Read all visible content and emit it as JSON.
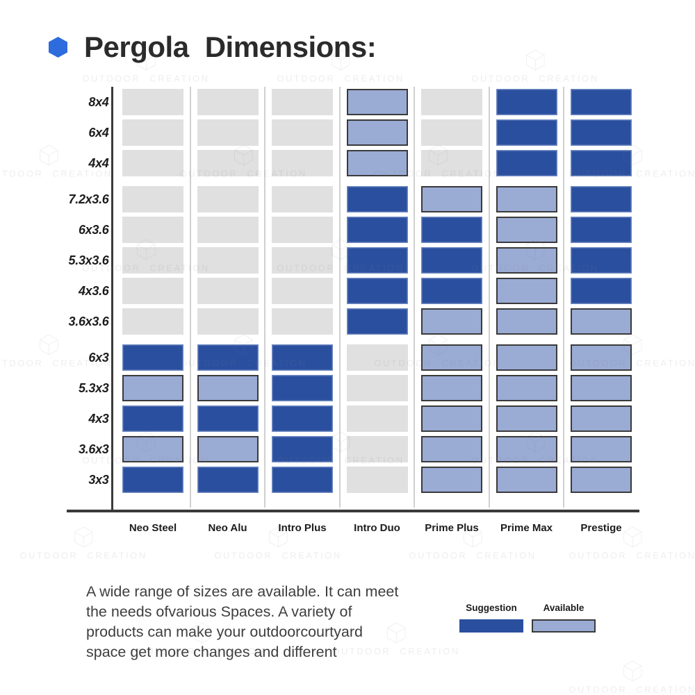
{
  "title": {
    "text": "Pergola Dimensions:",
    "bullet_icon": "blue-hexagon"
  },
  "watermark": {
    "text": "OUTDOOR CREATION"
  },
  "description": {
    "text": "A wide range of sizes are available. It can meet\nthe needs ofvarious Spaces. A variety of\nproducts can make your outdoorcourtyard\nspace get more changes and different"
  },
  "legend": {
    "suggestion_label": "Suggestion",
    "available_label": "Available"
  },
  "chart_data": {
    "type": "heatmap",
    "title": "Pergola Dimensions:",
    "xlabel": "",
    "ylabel": "",
    "columns": [
      "Neo Steel",
      "Neo Alu",
      "Intro Plus",
      "Intro Duo",
      "Prime Plus",
      "Prime Max",
      "Prestige"
    ],
    "rows": [
      "8x4",
      "6x4",
      "4x4",
      "7.2x3.6",
      "6x3.6",
      "5.3x3.6",
      "4x3.6",
      "3.6x3.6",
      "6x3",
      "5.3x3",
      "4x3",
      "3.6x3",
      "3x3"
    ],
    "row_group_starts": [
      3,
      8
    ],
    "cell_codes": {
      "S": "Suggestion",
      "A": "Available",
      "N": "Not offered"
    },
    "cells": [
      [
        "N",
        "N",
        "N",
        "A",
        "N",
        "S",
        "S"
      ],
      [
        "N",
        "N",
        "N",
        "A",
        "N",
        "S",
        "S"
      ],
      [
        "N",
        "N",
        "N",
        "A",
        "N",
        "S",
        "S"
      ],
      [
        "N",
        "N",
        "N",
        "S",
        "A",
        "A",
        "S"
      ],
      [
        "N",
        "N",
        "N",
        "S",
        "S",
        "A",
        "S"
      ],
      [
        "N",
        "N",
        "N",
        "S",
        "S",
        "A",
        "S"
      ],
      [
        "N",
        "N",
        "N",
        "S",
        "S",
        "A",
        "S"
      ],
      [
        "N",
        "N",
        "N",
        "S",
        "A",
        "A",
        "A"
      ],
      [
        "S",
        "S",
        "S",
        "N",
        "A",
        "A",
        "A"
      ],
      [
        "A",
        "A",
        "S",
        "N",
        "A",
        "A",
        "A"
      ],
      [
        "S",
        "S",
        "S",
        "N",
        "A",
        "A",
        "A"
      ],
      [
        "A",
        "A",
        "S",
        "N",
        "A",
        "A",
        "A"
      ],
      [
        "S",
        "S",
        "S",
        "N",
        "A",
        "A",
        "A"
      ]
    ],
    "legend_entries": [
      "Suggestion",
      "Available"
    ],
    "legend_position": "bottom-right",
    "grid": "column-separators",
    "colors": {
      "suggestion": "#2b4f9f",
      "available": "#9aabd4",
      "available_border": "#3a3a3a",
      "none": "#e0e0e0",
      "axis": "#3a3a3a",
      "separator": "#cfcfcf",
      "title_bullet": "#2e6bdd"
    }
  }
}
